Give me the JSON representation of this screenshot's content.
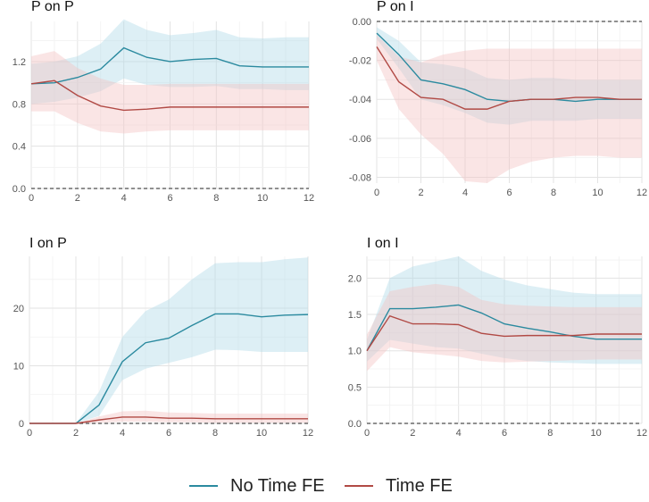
{
  "colors": {
    "no_time_fe": "#2b8a9f",
    "time_fe": "#b14a45",
    "no_time_fe_band": "#add8e6",
    "time_fe_band": "#f4c2c2",
    "grid": "#e6e6e6"
  },
  "legend": {
    "items": [
      {
        "label": "No Time FE",
        "color": "#2b8a9f"
      },
      {
        "label": "Time FE",
        "color": "#b14a45"
      }
    ]
  },
  "chart_data": [
    {
      "type": "line",
      "title": "P on P",
      "x": [
        0,
        1,
        2,
        3,
        4,
        5,
        6,
        7,
        8,
        9,
        10,
        11,
        12
      ],
      "xlim": [
        0,
        12
      ],
      "xticks": [
        0,
        2,
        4,
        6,
        8,
        10,
        12
      ],
      "ylim": [
        0,
        1.58
      ],
      "yticks": [
        0.0,
        0.4,
        0.8,
        1.2
      ],
      "ytick_labels": [
        "0.0",
        "0.4",
        "0.8",
        "1.2"
      ],
      "zero_line": true,
      "series": [
        {
          "name": "No Time FE",
          "values": [
            0.99,
            1.0,
            1.05,
            1.13,
            1.33,
            1.24,
            1.2,
            1.22,
            1.23,
            1.16,
            1.15,
            1.15,
            1.15
          ],
          "lower": [
            0.8,
            0.82,
            0.86,
            0.92,
            1.04,
            0.98,
            0.96,
            0.96,
            0.97,
            0.94,
            0.94,
            0.93,
            0.93
          ],
          "upper": [
            1.18,
            1.2,
            1.25,
            1.37,
            1.6,
            1.5,
            1.45,
            1.47,
            1.5,
            1.43,
            1.42,
            1.43,
            1.43
          ]
        },
        {
          "name": "Time FE",
          "values": [
            0.99,
            1.02,
            0.88,
            0.78,
            0.74,
            0.75,
            0.77,
            0.77,
            0.77,
            0.77,
            0.77,
            0.77,
            0.77
          ],
          "lower": [
            0.73,
            0.73,
            0.62,
            0.54,
            0.52,
            0.54,
            0.55,
            0.55,
            0.55,
            0.55,
            0.55,
            0.55,
            0.55
          ],
          "upper": [
            1.25,
            1.3,
            1.14,
            1.04,
            0.98,
            0.98,
            0.99,
            0.99,
            0.99,
            0.99,
            0.99,
            0.99,
            0.99
          ]
        }
      ]
    },
    {
      "type": "line",
      "title": "P on I",
      "x": [
        0,
        1,
        2,
        3,
        4,
        5,
        6,
        7,
        8,
        9,
        10,
        11,
        12
      ],
      "xlim": [
        0,
        12
      ],
      "xticks": [
        0,
        2,
        4,
        6,
        8,
        10,
        12
      ],
      "ylim": [
        -0.083,
        0.0
      ],
      "yticks": [
        0.0,
        -0.02,
        -0.04,
        -0.06,
        -0.08
      ],
      "ytick_labels": [
        "0.00",
        "-0.02",
        "-0.04",
        "-0.06",
        "-0.08"
      ],
      "zero_line": true,
      "series": [
        {
          "name": "No Time FE",
          "values": [
            -0.006,
            -0.017,
            -0.03,
            -0.032,
            -0.035,
            -0.04,
            -0.041,
            -0.04,
            -0.04,
            -0.041,
            -0.04,
            -0.04,
            -0.04
          ],
          "lower": [
            -0.009,
            -0.024,
            -0.04,
            -0.043,
            -0.047,
            -0.052,
            -0.053,
            -0.051,
            -0.051,
            -0.051,
            -0.05,
            -0.05,
            -0.05
          ],
          "upper": [
            -0.003,
            -0.01,
            -0.021,
            -0.022,
            -0.024,
            -0.029,
            -0.03,
            -0.029,
            -0.029,
            -0.03,
            -0.03,
            -0.03,
            -0.03
          ]
        },
        {
          "name": "Time FE",
          "values": [
            -0.013,
            -0.031,
            -0.039,
            -0.04,
            -0.045,
            -0.045,
            -0.041,
            -0.04,
            -0.04,
            -0.039,
            -0.039,
            -0.04,
            -0.04
          ],
          "lower": [
            -0.02,
            -0.045,
            -0.058,
            -0.068,
            -0.082,
            -0.083,
            -0.076,
            -0.072,
            -0.07,
            -0.069,
            -0.069,
            -0.07,
            -0.07
          ],
          "upper": [
            -0.007,
            -0.018,
            -0.021,
            -0.017,
            -0.015,
            -0.014,
            -0.014,
            -0.014,
            -0.014,
            -0.014,
            -0.014,
            -0.014,
            -0.014
          ]
        }
      ]
    },
    {
      "type": "line",
      "title": "I on P",
      "x": [
        0,
        1,
        2,
        3,
        4,
        5,
        6,
        7,
        8,
        9,
        10,
        11,
        12
      ],
      "xlim": [
        0,
        12
      ],
      "xticks": [
        0,
        2,
        4,
        6,
        8,
        10,
        12
      ],
      "ylim": [
        0,
        29
      ],
      "yticks": [
        0,
        10,
        20
      ],
      "ytick_labels": [
        "0",
        "10",
        "20"
      ],
      "zero_line": true,
      "series": [
        {
          "name": "No Time FE",
          "values": [
            0,
            0,
            0,
            3.2,
            10.7,
            14.0,
            14.8,
            17.0,
            19.0,
            19.0,
            18.5,
            18.8,
            18.9
          ],
          "lower": [
            0,
            0,
            0,
            1.3,
            7.5,
            9.5,
            10.5,
            11.5,
            12.8,
            12.7,
            12.4,
            12.4,
            12.4
          ],
          "upper": [
            0,
            0,
            0,
            5.5,
            15.0,
            19.5,
            21.5,
            25.0,
            27.8,
            28.0,
            28.0,
            28.5,
            28.8
          ]
        },
        {
          "name": "Time FE",
          "values": [
            0,
            0,
            0,
            0.6,
            1.1,
            1.1,
            0.9,
            0.9,
            0.8,
            0.8,
            0.8,
            0.8,
            0.8
          ],
          "lower": [
            0,
            0,
            0,
            0.1,
            0.3,
            0.3,
            0.2,
            0.2,
            0.1,
            0.1,
            0.1,
            0.1,
            0.1
          ],
          "upper": [
            0,
            0,
            0,
            1.2,
            2.1,
            2.2,
            1.9,
            1.8,
            1.7,
            1.7,
            1.7,
            1.7,
            1.7
          ]
        }
      ]
    },
    {
      "type": "line",
      "title": "I on I",
      "x": [
        0,
        1,
        2,
        3,
        4,
        5,
        6,
        7,
        8,
        9,
        10,
        11,
        12
      ],
      "xlim": [
        0,
        12
      ],
      "xticks": [
        0,
        2,
        4,
        6,
        8,
        10,
        12
      ],
      "ylim": [
        0,
        2.3
      ],
      "yticks": [
        0.0,
        0.5,
        1.0,
        1.5,
        2.0
      ],
      "ytick_labels": [
        "0.0",
        "0.5",
        "1.0",
        "1.5",
        "2.0"
      ],
      "zero_line": true,
      "series": [
        {
          "name": "No Time FE",
          "values": [
            1.0,
            1.58,
            1.58,
            1.6,
            1.63,
            1.52,
            1.37,
            1.31,
            1.26,
            1.2,
            1.16,
            1.16,
            1.16
          ],
          "lower": [
            0.85,
            1.15,
            1.1,
            1.05,
            1.03,
            0.96,
            0.9,
            0.86,
            0.84,
            0.83,
            0.82,
            0.82,
            0.82
          ],
          "upper": [
            1.15,
            2.0,
            2.16,
            2.23,
            2.3,
            2.1,
            1.98,
            1.9,
            1.85,
            1.8,
            1.78,
            1.78,
            1.78
          ]
        },
        {
          "name": "Time FE",
          "values": [
            1.0,
            1.48,
            1.37,
            1.37,
            1.36,
            1.24,
            1.2,
            1.21,
            1.21,
            1.21,
            1.23,
            1.23,
            1.23
          ],
          "lower": [
            0.72,
            1.05,
            0.98,
            0.95,
            0.92,
            0.86,
            0.84,
            0.85,
            0.86,
            0.87,
            0.88,
            0.88,
            0.88
          ],
          "upper": [
            1.22,
            1.82,
            1.88,
            1.92,
            1.88,
            1.7,
            1.64,
            1.62,
            1.61,
            1.6,
            1.6,
            1.6,
            1.6
          ]
        }
      ]
    }
  ]
}
